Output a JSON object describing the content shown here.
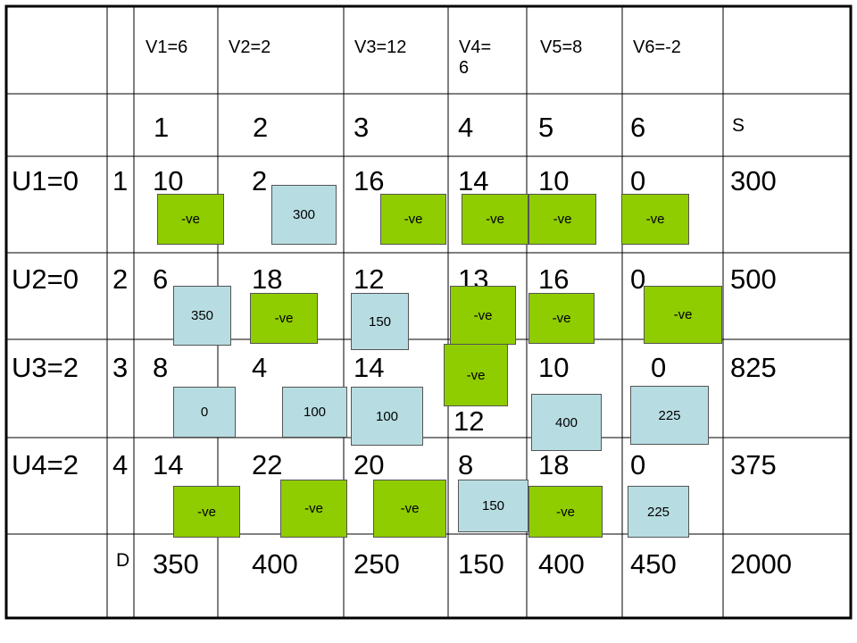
{
  "col_headers": [
    "V1=6",
    "V2=2",
    "V3=12",
    "V4=\n6",
    "V5=8",
    "V6=-2"
  ],
  "col_numbers": [
    "1",
    "2",
    "3",
    "4",
    "5",
    "6"
  ],
  "supply_header": "S",
  "rows": [
    {
      "u": "U1=0",
      "idx": "1",
      "costs": [
        "10",
        "2",
        "16",
        "14",
        "10",
        "0"
      ],
      "supply": "300"
    },
    {
      "u": "U2=0",
      "idx": "2",
      "costs": [
        "6",
        "18",
        "12",
        "13",
        "16",
        "0"
      ],
      "supply": "500"
    },
    {
      "u": "U3=2",
      "idx": "3",
      "costs": [
        "8",
        "4",
        "14",
        "12",
        "10",
        "0"
      ],
      "supply": "825"
    },
    {
      "u": "U4=2",
      "idx": "4",
      "costs": [
        "14",
        "22",
        "20",
        "8",
        "18",
        "0"
      ],
      "supply": "375"
    }
  ],
  "demand_label": "D",
  "demands": [
    "350",
    "400",
    "250",
    "150",
    "400",
    "450"
  ],
  "total": "2000",
  "markers": {
    "r1": [
      "-ve",
      "300",
      "-ve",
      "-ve",
      "-ve",
      "-ve"
    ],
    "r2": [
      "350",
      "-ve",
      "150",
      "-ve",
      "-ve",
      "-ve"
    ],
    "r3": [
      "0",
      "100",
      "100",
      "-ve",
      "400",
      "225"
    ],
    "r4": [
      "-ve",
      "-ve",
      "-ve",
      "150",
      "-ve",
      "225"
    ]
  },
  "colors": {
    "negative": "#8fcc00",
    "allocation": "#b7dde2",
    "grid": "#000000"
  }
}
